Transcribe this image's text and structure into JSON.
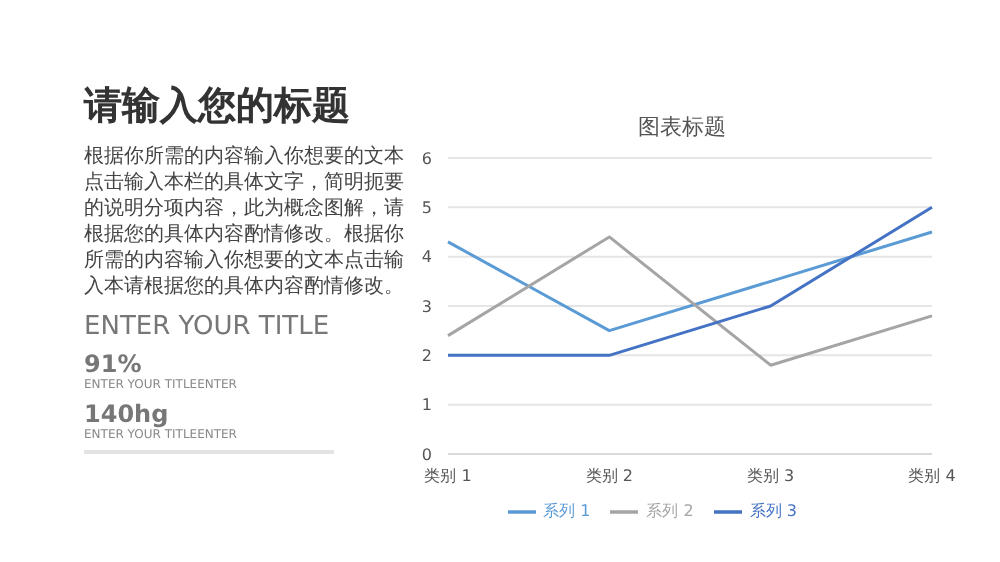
{
  "chart_data": {
    "type": "line",
    "title": "图表标题",
    "categories": [
      "类别 1",
      "类别 2",
      "类别 3",
      "类别 4"
    ],
    "series": [
      {
        "name": "系列 1",
        "color": "#5b9bd5",
        "values": [
          4.3,
          2.5,
          3.5,
          4.5
        ]
      },
      {
        "name": "系列 2",
        "color": "#a5a5a5",
        "values": [
          2.4,
          4.4,
          1.8,
          2.8
        ]
      },
      {
        "name": "系列 3",
        "color": "#4472c4",
        "values": [
          2,
          2,
          3,
          5
        ]
      }
    ],
    "ylim": [
      0,
      6
    ],
    "yticks": [
      0,
      1,
      2,
      3,
      4,
      5,
      6
    ],
    "grid": "y",
    "legend": "bottom",
    "marker": "none",
    "line_style": "solid",
    "annotations": [
      "请输入您的标题",
      "根据你所需的内容输入你想要的文本点击输入本栏的具体文字，简明扼要的说明分项内容，此为概念图解，请根据您的具体内容酌情修改。根据你所需的内容输入你想要的文本点击输入本请根据您的具体内容酌情修改。",
      "ENTER YOUR TITLE",
      "91%",
      "ENTER YOUR TITLEENTER",
      "140hg",
      "ENTER YOUR TITLEENTER"
    ]
  }
}
